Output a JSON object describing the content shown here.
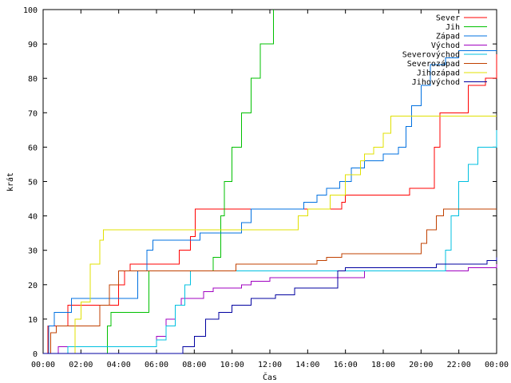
{
  "chart_data": {
    "type": "line",
    "title": "",
    "xlabel": "Čas",
    "ylabel": "krát",
    "xlim": [
      0,
      24
    ],
    "ylim": [
      0,
      100
    ],
    "x_ticks": [
      0,
      2,
      4,
      6,
      8,
      10,
      12,
      14,
      16,
      18,
      20,
      22,
      24
    ],
    "x_tick_labels": [
      "00:00",
      "02:00",
      "04:00",
      "06:00",
      "08:00",
      "10:00",
      "12:00",
      "14:00",
      "16:00",
      "18:00",
      "20:00",
      "22:00",
      "00:00"
    ],
    "y_ticks": [
      0,
      10,
      20,
      30,
      40,
      50,
      60,
      70,
      80,
      90,
      100
    ],
    "y_tick_labels": [
      "0",
      "10",
      "20",
      "30",
      "40",
      "50",
      "60",
      "70",
      "80",
      "90",
      "100"
    ],
    "grid": false,
    "legend_position": "top-right",
    "series": [
      {
        "name": "Sever",
        "color": "#ff0000",
        "points": [
          [
            0,
            0
          ],
          [
            0.25,
            8
          ],
          [
            1.0,
            8
          ],
          [
            1.3,
            14
          ],
          [
            3.8,
            14
          ],
          [
            4.0,
            20
          ],
          [
            4.3,
            24
          ],
          [
            4.6,
            26
          ],
          [
            6.8,
            26
          ],
          [
            7.2,
            30
          ],
          [
            7.8,
            34
          ],
          [
            8.05,
            42
          ],
          [
            15.8,
            44
          ],
          [
            16.0,
            46
          ],
          [
            19.3,
            46
          ],
          [
            19.4,
            48
          ],
          [
            20.5,
            48
          ],
          [
            20.7,
            60
          ],
          [
            21.0,
            70
          ],
          [
            22.5,
            78
          ],
          [
            23.4,
            80
          ],
          [
            24.0,
            87
          ]
        ]
      },
      {
        "name": "Jih",
        "color": "#00c000",
        "points": [
          [
            0,
            0
          ],
          [
            3.2,
            0
          ],
          [
            3.4,
            8
          ],
          [
            3.6,
            12
          ],
          [
            5.5,
            12
          ],
          [
            5.6,
            24
          ],
          [
            8.8,
            24
          ],
          [
            9.0,
            28
          ],
          [
            9.4,
            40
          ],
          [
            9.6,
            50
          ],
          [
            10.0,
            60
          ],
          [
            10.5,
            70
          ],
          [
            11.0,
            80
          ],
          [
            11.5,
            90
          ],
          [
            12.2,
            100
          ]
        ]
      },
      {
        "name": "Západ",
        "color": "#0070e0",
        "points": [
          [
            0,
            0
          ],
          [
            0.3,
            8
          ],
          [
            0.6,
            12
          ],
          [
            1.3,
            12
          ],
          [
            1.5,
            16
          ],
          [
            4.8,
            16
          ],
          [
            5.0,
            24
          ],
          [
            5.5,
            30
          ],
          [
            5.8,
            33
          ],
          [
            8.0,
            33
          ],
          [
            8.3,
            35
          ],
          [
            9.0,
            35
          ],
          [
            10.2,
            35
          ],
          [
            10.5,
            38
          ],
          [
            11.0,
            42
          ],
          [
            13.5,
            42
          ],
          [
            13.8,
            44
          ],
          [
            14.3,
            44
          ],
          [
            14.5,
            46
          ],
          [
            15.0,
            48
          ],
          [
            15.7,
            50
          ],
          [
            16.3,
            54
          ],
          [
            17.0,
            56
          ],
          [
            18.0,
            58
          ],
          [
            18.8,
            60
          ],
          [
            19.2,
            66
          ],
          [
            19.5,
            72
          ],
          [
            20.0,
            78
          ],
          [
            20.5,
            84
          ],
          [
            21.3,
            86
          ],
          [
            22.0,
            88
          ],
          [
            24.0,
            88
          ]
        ]
      },
      {
        "name": "Východ",
        "color": "#a000c0",
        "points": [
          [
            0,
            0
          ],
          [
            0.7,
            0
          ],
          [
            0.8,
            2
          ],
          [
            5.8,
            2
          ],
          [
            6.0,
            5
          ],
          [
            6.5,
            10
          ],
          [
            7.0,
            14
          ],
          [
            7.3,
            16
          ],
          [
            8.5,
            18
          ],
          [
            9.0,
            19
          ],
          [
            10.5,
            20
          ],
          [
            11.0,
            21
          ],
          [
            12.0,
            22
          ],
          [
            16.5,
            22
          ],
          [
            17.0,
            24
          ],
          [
            22.0,
            24
          ],
          [
            22.5,
            25
          ],
          [
            24.0,
            26
          ]
        ]
      },
      {
        "name": "Severovýchod",
        "color": "#00c0e0",
        "points": [
          [
            0,
            0
          ],
          [
            1.2,
            0
          ],
          [
            1.3,
            2
          ],
          [
            5.8,
            2
          ],
          [
            6.0,
            4
          ],
          [
            6.5,
            8
          ],
          [
            7.0,
            14
          ],
          [
            7.5,
            20
          ],
          [
            7.8,
            24
          ],
          [
            20.0,
            24
          ],
          [
            21.0,
            24
          ],
          [
            21.3,
            30
          ],
          [
            21.6,
            40
          ],
          [
            22.0,
            50
          ],
          [
            22.5,
            55
          ],
          [
            23.0,
            60
          ],
          [
            24.0,
            65
          ]
        ]
      },
      {
        "name": "Severozápad",
        "color": "#c04000",
        "points": [
          [
            0,
            0
          ],
          [
            0.4,
            6
          ],
          [
            0.7,
            8
          ],
          [
            2.8,
            8
          ],
          [
            3.0,
            14
          ],
          [
            3.5,
            20
          ],
          [
            4.0,
            24
          ],
          [
            10.0,
            24
          ],
          [
            10.2,
            26
          ],
          [
            14.5,
            27
          ],
          [
            15.0,
            28
          ],
          [
            15.8,
            29
          ],
          [
            19.5,
            29
          ],
          [
            20.0,
            32
          ],
          [
            20.3,
            36
          ],
          [
            20.8,
            40
          ],
          [
            21.2,
            42
          ],
          [
            24.0,
            42
          ]
        ]
      },
      {
        "name": "Jihozápad",
        "color": "#e0e000",
        "points": [
          [
            0,
            0
          ],
          [
            1.5,
            0
          ],
          [
            1.7,
            10
          ],
          [
            2.0,
            15
          ],
          [
            2.5,
            26
          ],
          [
            3.0,
            33
          ],
          [
            3.2,
            36
          ],
          [
            13.2,
            36
          ],
          [
            13.5,
            40
          ],
          [
            14.0,
            42
          ],
          [
            15.2,
            46
          ],
          [
            16.0,
            52
          ],
          [
            16.8,
            56
          ],
          [
            17.0,
            58
          ],
          [
            17.5,
            60
          ],
          [
            18.0,
            64
          ],
          [
            18.4,
            69
          ],
          [
            24.0,
            69
          ]
        ]
      },
      {
        "name": "Jihovýchod",
        "color": "#0000a0",
        "points": [
          [
            0,
            0
          ],
          [
            7.3,
            0
          ],
          [
            7.4,
            2
          ],
          [
            8.0,
            5
          ],
          [
            8.6,
            10
          ],
          [
            9.3,
            12
          ],
          [
            10.0,
            14
          ],
          [
            11.0,
            16
          ],
          [
            12.3,
            17
          ],
          [
            13.3,
            19
          ],
          [
            15.5,
            19
          ],
          [
            15.6,
            24
          ],
          [
            16.0,
            25
          ],
          [
            20.5,
            25
          ],
          [
            20.8,
            26
          ],
          [
            23.5,
            27
          ],
          [
            24.0,
            28
          ]
        ]
      }
    ]
  }
}
